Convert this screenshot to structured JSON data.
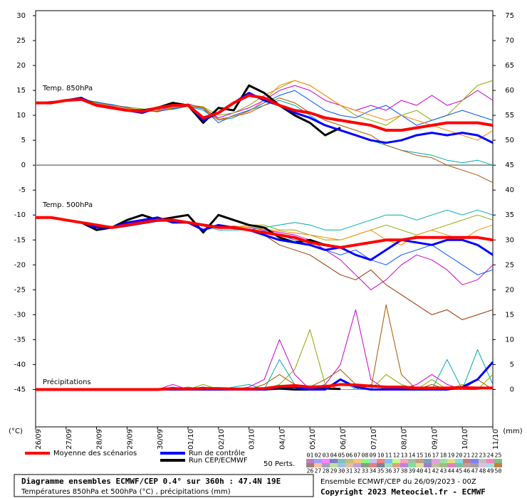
{
  "chart_data": {
    "type": "line",
    "title": "Diagramme ensembles ECMWF/CEP 0.4° sur 360h : 47.4N 19E",
    "subtitle": "Températures 850hPa et 500hPa (°C) , précipitations (mm)",
    "source": "Ensemble ECMWF/CEP du 26/09/2023 - 00Z",
    "copyright": "Copyright 2023 Meteociel.fr - ECMWF",
    "y_unit": "(°C)",
    "y2_unit": "(mm)",
    "annotations": [
      "Temp. 850hPa",
      "Temp. 500hPa",
      "Précipitations"
    ],
    "x": [
      0,
      12,
      24,
      36,
      48,
      60,
      72,
      84,
      96,
      108,
      120,
      132,
      144,
      156,
      168,
      180,
      192,
      204,
      216,
      228,
      240,
      252,
      264,
      276,
      288,
      300,
      312,
      324,
      336,
      348,
      360
    ],
    "xlim": [
      0,
      360
    ],
    "xticks": [
      {
        "value": 0,
        "label": "26/09"
      },
      {
        "value": 24,
        "label": "27/09"
      },
      {
        "value": 48,
        "label": "28/09"
      },
      {
        "value": 72,
        "label": "29/09"
      },
      {
        "value": 96,
        "label": "30/09"
      },
      {
        "value": 120,
        "label": "01/10"
      },
      {
        "value": 144,
        "label": "02/10"
      },
      {
        "value": 168,
        "label": "03/10"
      },
      {
        "value": 192,
        "label": "04/10"
      },
      {
        "value": 216,
        "label": "05/10"
      },
      {
        "value": 240,
        "label": "06/10"
      },
      {
        "value": 264,
        "label": "07/10"
      },
      {
        "value": 288,
        "label": "08/10"
      },
      {
        "value": 312,
        "label": "09/10"
      },
      {
        "value": 336,
        "label": "10/10"
      },
      {
        "value": 360,
        "label": "11/10"
      }
    ],
    "ylim": [
      -52.5,
      31
    ],
    "yticks": [
      30,
      25,
      20,
      15,
      10,
      5,
      0,
      -5,
      -10,
      -15,
      -20,
      -25,
      -30,
      -35,
      -40,
      -45
    ],
    "y2lim": [
      -7.5,
      76
    ],
    "y2ticks": [
      75,
      70,
      65,
      60,
      55,
      50,
      45,
      40,
      35,
      30,
      25,
      20,
      15,
      10,
      5,
      0
    ],
    "hlines": [
      0
    ],
    "legend": [
      {
        "name": "Moyenne des scénarios",
        "color": "#ff0000"
      },
      {
        "name": "Run de contrôle",
        "color": "#0000ff"
      },
      {
        "name": "Run CEP/ECMWF",
        "color": "#000000"
      }
    ],
    "members_label": "50 Perts.",
    "member_labels": [
      "01",
      "02",
      "03",
      "04",
      "05",
      "06",
      "07",
      "08",
      "09",
      "10",
      "11",
      "12",
      "13",
      "14",
      "15",
      "16",
      "17",
      "18",
      "19",
      "20",
      "21",
      "22",
      "23",
      "24",
      "25",
      "26",
      "27",
      "28",
      "29",
      "30",
      "31",
      "32",
      "33",
      "34",
      "35",
      "36",
      "37",
      "38",
      "39",
      "40",
      "41",
      "42",
      "43",
      "44",
      "45",
      "46",
      "47",
      "48",
      "49",
      "50"
    ],
    "member_colors": [
      "#c080c0",
      "#a0a0ff",
      "#ff80ff",
      "#8080c0",
      "#80c0c0",
      "#c0c080",
      "#ffc080",
      "#80ff80",
      "#c0c0ff",
      "#ff8080",
      "#80c0ff",
      "#c0ff80",
      "#ffa0c0",
      "#a0c0a0",
      "#c0a080",
      "#80a0c0",
      "#e0a0e0",
      "#a0e0a0",
      "#e0e080",
      "#80e0e0",
      "#c08080",
      "#8080ff",
      "#c0c0c0",
      "#ff80c0",
      "#80c080",
      "#a08080",
      "#ffc0a0",
      "#a0a0c0",
      "#c0e0a0",
      "#a0c0e0",
      "#e0c0a0",
      "#c0a0e0",
      "#80a080",
      "#e08080",
      "#8080a0",
      "#a0e0c0",
      "#e0a080",
      "#c080e0",
      "#80e0a0",
      "#e0e0a0",
      "#a080c0",
      "#c0c0a0",
      "#a0c080",
      "#e080c0",
      "#80c0a0",
      "#c0a0a0",
      "#a0a0a0",
      "#e0c0e0",
      "#a0e0e0",
      "#c08040"
    ],
    "series": [
      {
        "color": "#cc00cc",
        "width": 1,
        "values": [
          12.5,
          12.8,
          13,
          13.3,
          12.3,
          11.8,
          11.2,
          10.8,
          11,
          11.8,
          12.3,
          11.4,
          9.5,
          10.5,
          11.5,
          13,
          15,
          16,
          15,
          13,
          12,
          11,
          12,
          11,
          13,
          12,
          14,
          12,
          13,
          15,
          13
        ]
      },
      {
        "color": "#00aaaa",
        "width": 1,
        "values": [
          12.5,
          12.5,
          12.8,
          13,
          12.5,
          12.2,
          11.5,
          11,
          11.2,
          11.2,
          11.8,
          11,
          9,
          9.5,
          11,
          12,
          13,
          12,
          10,
          8,
          7,
          6,
          5,
          4,
          3,
          2.5,
          2,
          1,
          0.5,
          1,
          0
        ]
      },
      {
        "color": "#88aa00",
        "width": 1,
        "values": [
          12.3,
          12.5,
          13.1,
          13.4,
          12.6,
          11.9,
          11.7,
          11.3,
          10.9,
          11.6,
          12.1,
          11.7,
          10,
          10.5,
          12,
          14,
          15.5,
          17,
          16,
          14,
          12,
          10,
          9,
          8,
          10,
          11,
          9,
          10,
          13,
          16,
          17
        ]
      },
      {
        "color": "#aa5500",
        "width": 1,
        "values": [
          12.6,
          12.4,
          12.9,
          13.2,
          12.4,
          12,
          11.4,
          11.1,
          10.7,
          11.4,
          12.2,
          11.6,
          9.2,
          9.8,
          10.5,
          12,
          13.5,
          12.5,
          10.5,
          9,
          8,
          7,
          6,
          4,
          3,
          2,
          1.5,
          0,
          -1,
          -2,
          -3.5
        ]
      },
      {
        "color": "#0055ff",
        "width": 1,
        "values": [
          12.4,
          12.6,
          13,
          13.1,
          12.7,
          12.1,
          11.6,
          10.9,
          10.8,
          11.3,
          11.9,
          11.3,
          8.5,
          10,
          11,
          12.5,
          14,
          15,
          13,
          11,
          10,
          9.5,
          11,
          12,
          10,
          8,
          9,
          10,
          11,
          10,
          9
        ]
      },
      {
        "color": "#ff8800",
        "width": 1,
        "values": [
          12.5,
          12.6,
          12.9,
          13.2,
          12.4,
          12,
          11.5,
          11,
          10.9,
          11.5,
          12,
          11.4,
          9,
          9.8,
          10.8,
          13,
          16,
          17,
          16,
          14,
          12,
          11,
          10,
          9,
          10,
          9,
          8,
          7,
          6,
          5,
          7
        ]
      },
      {
        "color": "#cc00cc",
        "width": 1,
        "values": [
          -10.5,
          -10.6,
          -11,
          -11.4,
          -12.2,
          -12.4,
          -11.8,
          -11.2,
          -10.8,
          -11,
          -11.4,
          -12,
          -12.5,
          -12.2,
          -12.5,
          -13,
          -13.5,
          -14,
          -15,
          -17,
          -19,
          -22,
          -25,
          -23,
          -20,
          -18,
          -19,
          -21,
          -24,
          -23,
          -20
        ]
      },
      {
        "color": "#00aaaa",
        "width": 1,
        "values": [
          -10.5,
          -10.4,
          -11,
          -11.5,
          -11.8,
          -12.6,
          -12.2,
          -11.6,
          -11.2,
          -11.2,
          -11.6,
          -12.2,
          -13,
          -13,
          -13,
          -12.5,
          -12,
          -11.5,
          -12,
          -13,
          -13,
          -12,
          -11,
          -10,
          -10,
          -11,
          -10,
          -9,
          -10,
          -9,
          -10
        ]
      },
      {
        "color": "#993300",
        "width": 1,
        "values": [
          -10.6,
          -10.5,
          -11.1,
          -11.6,
          -12,
          -12.3,
          -11.9,
          -11.4,
          -11,
          -10.9,
          -11.3,
          -11.8,
          -12.2,
          -12.8,
          -13,
          -14,
          -16,
          -17,
          -18,
          -20,
          -22,
          -23,
          -21,
          -24,
          -26,
          -28,
          -30,
          -29,
          -31,
          -30,
          -29
        ]
      },
      {
        "color": "#88aa00",
        "width": 1,
        "values": [
          -10.4,
          -10.5,
          -10.9,
          -11.4,
          -12.1,
          -12.5,
          -12.1,
          -11.5,
          -11,
          -11.1,
          -11.5,
          -12,
          -12.5,
          -12.5,
          -12,
          -12,
          -13,
          -13,
          -14,
          -15,
          -15,
          -14,
          -13,
          -12,
          -13,
          -14,
          -13,
          -12,
          -11,
          -10,
          -11
        ]
      },
      {
        "color": "#0055ff",
        "width": 1,
        "values": [
          -10.5,
          -10.5,
          -11,
          -11.6,
          -12.2,
          -12.7,
          -12.3,
          -11.8,
          -11.3,
          -11.2,
          -11.6,
          -12.1,
          -12.6,
          -12.7,
          -12.9,
          -13.2,
          -14,
          -15,
          -16,
          -17,
          -18,
          -17,
          -19,
          -20,
          -18,
          -17,
          -16,
          -18,
          -20,
          -22,
          -21
        ]
      },
      {
        "color": "#ff8800",
        "width": 1,
        "values": [
          -10.5,
          -10.6,
          -11.1,
          -11.5,
          -11.9,
          -12.4,
          -12,
          -11.4,
          -10.9,
          -11,
          -11.4,
          -11.9,
          -12.4,
          -12.3,
          -12.4,
          -12.8,
          -13.2,
          -13.6,
          -14,
          -14.5,
          -15,
          -14,
          -13,
          -15,
          -16,
          -14,
          -13,
          -14,
          -15,
          -13,
          -12
        ]
      },
      {
        "color": "#cc00cc",
        "width": 1,
        "axis": "y2",
        "values": [
          0,
          0,
          0,
          0,
          0,
          0,
          0,
          0,
          0,
          1,
          0,
          0.5,
          0,
          0,
          0.5,
          2,
          10,
          3,
          0,
          1,
          5,
          16,
          2,
          0,
          0,
          1,
          3,
          1,
          0,
          0,
          0.5
        ]
      },
      {
        "color": "#aa5500",
        "width": 1,
        "axis": "y2",
        "values": [
          0,
          0,
          0,
          0,
          0,
          0,
          0,
          0,
          0,
          0,
          0.5,
          0,
          0,
          0,
          0,
          1,
          3,
          1,
          0.5,
          2,
          4,
          1,
          0,
          17,
          3,
          0,
          1,
          0,
          0,
          2,
          0
        ]
      },
      {
        "color": "#00aaaa",
        "width": 1,
        "axis": "y2",
        "values": [
          0,
          0,
          0,
          0,
          0,
          0,
          0,
          0,
          0,
          0.5,
          0,
          0,
          0,
          0.5,
          1,
          0,
          6,
          1,
          0,
          0,
          2,
          0,
          1,
          0,
          0,
          0,
          0,
          6,
          0,
          8,
          1
        ]
      },
      {
        "color": "#88aa00",
        "width": 1,
        "axis": "y2",
        "values": [
          0,
          0,
          0,
          0,
          0,
          0,
          0,
          0,
          0,
          0,
          0,
          1,
          0,
          0,
          0,
          0,
          1,
          4,
          12,
          1,
          0,
          0,
          0,
          3,
          1,
          0,
          2,
          0,
          1,
          0,
          3
        ]
      },
      {
        "color": "#000000",
        "width": 3,
        "values": [
          12.5,
          12.5,
          13,
          13.5,
          12,
          11.5,
          11,
          11,
          11.5,
          12.5,
          12,
          8.5,
          11.5,
          11,
          16,
          14.5,
          12,
          10,
          8.5,
          6,
          7.5,
          null,
          null,
          null,
          null,
          null,
          null,
          null,
          null,
          null,
          null
        ]
      },
      {
        "color": "#0000ff",
        "width": 3,
        "values": [
          12.5,
          12.5,
          13,
          13.5,
          12,
          11.5,
          11,
          10.5,
          11.5,
          12,
          12,
          9,
          10.5,
          12.5,
          14.5,
          13,
          12,
          10.5,
          9.5,
          8,
          7,
          6,
          5,
          4.5,
          5,
          6,
          6.5,
          6,
          6.5,
          6,
          4.5
        ]
      },
      {
        "color": "#ff0000",
        "width": 4,
        "values": [
          12.5,
          12.5,
          13,
          13.2,
          12,
          11.5,
          11,
          10.8,
          11.5,
          12,
          12,
          9.5,
          10.5,
          12.5,
          14,
          13.5,
          12,
          11,
          10.5,
          9.5,
          9,
          8.5,
          8,
          7,
          7,
          7.5,
          8,
          8.5,
          8.5,
          8.5,
          8
        ]
      },
      {
        "color": "#000000",
        "width": 3,
        "values": [
          -10.5,
          -10.5,
          -11,
          -11.5,
          -13,
          -12.5,
          -11,
          -10,
          -11,
          -10.5,
          -10,
          -13.5,
          -10,
          -11,
          -12,
          -12.5,
          -14.5,
          -15.5,
          -15,
          -16,
          -16.5,
          null,
          null,
          null,
          null,
          null,
          null,
          null,
          null,
          null,
          null
        ]
      },
      {
        "color": "#0000ff",
        "width": 3,
        "values": [
          -10.5,
          -10.5,
          -11,
          -11.5,
          -12.5,
          -12.5,
          -11.5,
          -11,
          -10.5,
          -11.5,
          -11.5,
          -13,
          -12,
          -12.5,
          -13,
          -14,
          -15,
          -15.5,
          -16,
          -17,
          -16.5,
          -18,
          -19,
          -17,
          -15,
          -15.5,
          -16,
          -15,
          -15,
          -16,
          -18
        ]
      },
      {
        "color": "#ff0000",
        "width": 4,
        "values": [
          -10.5,
          -10.5,
          -11,
          -11.5,
          -12,
          -12.5,
          -12,
          -11.5,
          -11,
          -11,
          -11.5,
          -12,
          -12.5,
          -12.5,
          -13,
          -13.5,
          -14,
          -14.5,
          -15.5,
          -16,
          -16.5,
          -16,
          -15.5,
          -15,
          -15,
          -14.5,
          -14.5,
          -14.5,
          -14.5,
          -14.5,
          -15
        ]
      },
      {
        "color": "#000000",
        "width": 3,
        "axis": "y2",
        "values": [
          0,
          0,
          0,
          0,
          0,
          0,
          0,
          0,
          0,
          0,
          0,
          0.3,
          0,
          0,
          0,
          0,
          0.2,
          0,
          0,
          0.2,
          0.1,
          null,
          null,
          null,
          null,
          null,
          null,
          null,
          null,
          null,
          null
        ]
      },
      {
        "color": "#0000ff",
        "width": 3,
        "axis": "y2",
        "values": [
          0,
          0,
          0,
          0,
          0,
          0,
          0,
          0,
          0,
          0,
          0,
          0,
          0,
          0,
          0,
          0,
          0.5,
          0.5,
          0,
          0,
          2,
          0.5,
          0,
          0,
          0,
          0,
          0,
          0,
          0.5,
          2,
          5.5
        ]
      },
      {
        "color": "#ff0000",
        "width": 4,
        "axis": "y2",
        "values": [
          0,
          0,
          0,
          0,
          0,
          0,
          0,
          0,
          0,
          0.2,
          0.1,
          0.2,
          0.2,
          0.1,
          0.1,
          0.2,
          0.6,
          0.8,
          0.5,
          0.6,
          1,
          0.9,
          0.7,
          0.5,
          0.5,
          0.3,
          0.3,
          0.3,
          0.4,
          0.3,
          0.3
        ]
      }
    ]
  }
}
